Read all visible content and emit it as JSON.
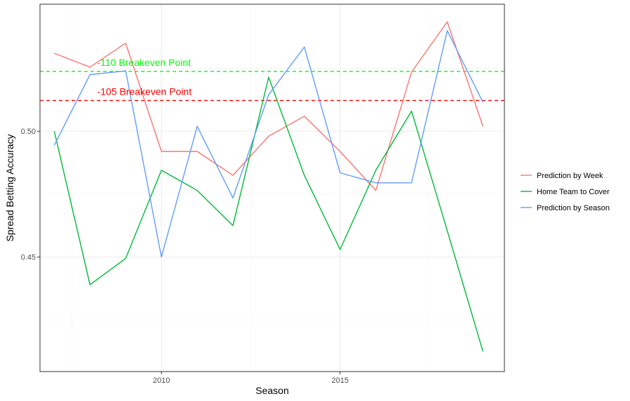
{
  "chart_data": {
    "type": "line",
    "xlabel": "Season",
    "ylabel": "Spread Betting Accuracy",
    "x": [
      2007,
      2008,
      2009,
      2010,
      2011,
      2012,
      2013,
      2014,
      2015,
      2016,
      2017,
      2018,
      2019
    ],
    "xlim": [
      2006.6,
      2019.6
    ],
    "ylim": [
      0.4045,
      0.5505
    ],
    "x_ticks": [
      2010,
      2015
    ],
    "x_tick_labels": [
      "2010",
      "2015"
    ],
    "y_ticks": [
      0.45,
      0.5
    ],
    "y_tick_labels": [
      "0.45",
      "0.50"
    ],
    "grid": true,
    "legend_position": "right",
    "series": [
      {
        "name": "Prediction by Week",
        "color": "#F8766D",
        "values": [
          0.531,
          0.5255,
          0.535,
          0.492,
          0.492,
          0.4825,
          0.498,
          0.506,
          0.492,
          0.4765,
          0.5235,
          0.5435,
          0.502
        ]
      },
      {
        "name": "Home Team to Cover",
        "color": "#00BA38",
        "values": [
          0.5,
          0.439,
          0.4495,
          0.4845,
          0.4765,
          0.4625,
          0.5215,
          0.4825,
          0.453,
          0.4845,
          0.508,
          0.4605,
          0.4125
        ]
      },
      {
        "name": "Prediction by Season",
        "color": "#619CFF",
        "values": [
          0.4945,
          0.5225,
          0.524,
          0.45,
          0.502,
          0.4735,
          0.5145,
          0.5335,
          0.4835,
          0.4795,
          0.4795,
          0.54,
          0.5115
        ]
      }
    ],
    "reference_lines": [
      {
        "label": "-110 Breakeven Point",
        "value": 0.5238,
        "color": "#00FF00"
      },
      {
        "label": "-105 Breakeven Point",
        "value": 0.5122,
        "color": "#FF0000"
      }
    ]
  }
}
